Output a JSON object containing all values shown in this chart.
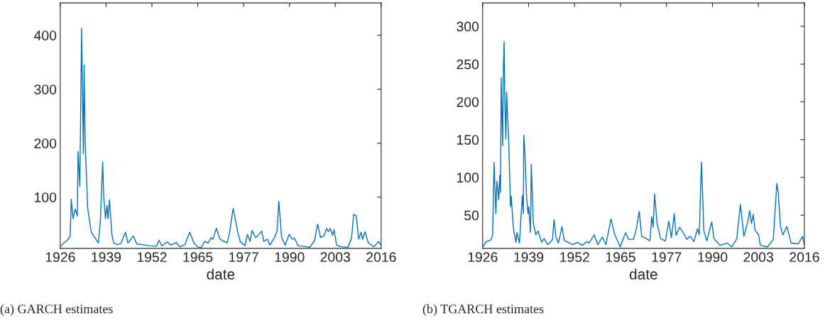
{
  "chart_data": [
    {
      "type": "line",
      "xlabel": "date",
      "annotations": [
        "(a) GARCH estimates"
      ],
      "grid": false,
      "xlim": [
        1926,
        2016
      ],
      "ylim": [
        5,
        460
      ],
      "yticks": [
        100,
        200,
        300,
        400
      ],
      "xticks": [
        {
          "value": 1926,
          "label": "1926"
        },
        {
          "value": 1938.86,
          "label": "1939"
        },
        {
          "value": 1951.71,
          "label": "1952"
        },
        {
          "value": 1964.57,
          "label": "1965"
        },
        {
          "value": 1977.43,
          "label": "1977"
        },
        {
          "value": 1990.29,
          "label": "1990"
        },
        {
          "value": 2003.14,
          "label": "2003"
        },
        {
          "value": 2016,
          "label": "2016"
        }
      ],
      "series": [
        {
          "color": "#0072bd",
          "x": [
            1926,
            1927,
            1928,
            1928.8,
            1929.1,
            1929.6,
            1930.2,
            1930.8,
            1931.0,
            1931.5,
            1932.0,
            1932.5,
            1932.7,
            1933.0,
            1933.7,
            1934.7,
            1936.7,
            1937.3,
            1937.9,
            1938.2,
            1938.7,
            1939.1,
            1939.4,
            1939.8,
            1940.5,
            1941,
            1942,
            1943,
            1944.3,
            1945,
            1946.5,
            1947.5,
            1949,
            1951,
            1953,
            1953.7,
            1954.5,
            1956,
            1957,
            1958.5,
            1959.5,
            1961,
            1962.3,
            1963.5,
            1964.5,
            1965.5,
            1966.5,
            1967.5,
            1968.3,
            1968.8,
            1969.8,
            1970.8,
            1972.8,
            1973.5,
            1974.5,
            1975.2,
            1975.8,
            1976.5,
            1977.8,
            1978.5,
            1979.2,
            1979.8,
            1980.8,
            1981.5,
            1982.5,
            1983.1,
            1984.1,
            1984.8,
            1986.1,
            1986.8,
            1987.3,
            1988.1,
            1989.1,
            1990.2,
            1991.1,
            1991.7,
            1992.7,
            1994.0,
            1996.0,
            1997.3,
            1998.2,
            1999.0,
            2000.0,
            2000.7,
            2001.2,
            2001.7,
            2002.4,
            2002.8,
            2003.5,
            2004.7,
            2006.7,
            2007.7,
            2008.3,
            2009.0,
            2009.7,
            2010.4,
            2010.8,
            2011.5,
            2012.4,
            2014.0,
            2015.3,
            2016.0
          ],
          "values": [
            8,
            15,
            20,
            28,
            96,
            60,
            78,
            65,
            185,
            120,
            413,
            180,
            345,
            200,
            80,
            35,
            15,
            60,
            165,
            100,
            60,
            85,
            60,
            95,
            30,
            15,
            12,
            14,
            35,
            15,
            28,
            13,
            12,
            10,
            9,
            20,
            10,
            17,
            11,
            16,
            8,
            12,
            35,
            15,
            8,
            6,
            18,
            15,
            25,
            22,
            42,
            22,
            15,
            35,
            79,
            55,
            35,
            17,
            10,
            31,
            18,
            38,
            25,
            29,
            37,
            18,
            22,
            11,
            25,
            37,
            92,
            25,
            11,
            31,
            22,
            24,
            10,
            9,
            7,
            19,
            50,
            25,
            29,
            42,
            36,
            42,
            29,
            40,
            11,
            8,
            7,
            24,
            68,
            66,
            22,
            35,
            22,
            36,
            15,
            8,
            18,
            10
          ]
        }
      ]
    },
    {
      "type": "line",
      "xlabel": "date",
      "annotations": [
        "(b) TGARCH estimates"
      ],
      "grid": false,
      "xlim": [
        1926,
        2016
      ],
      "ylim": [
        6,
        331
      ],
      "yticks": [
        50,
        100,
        150,
        200,
        250,
        300
      ],
      "xticks": [
        {
          "value": 1926,
          "label": "1926"
        },
        {
          "value": 1938.86,
          "label": "1939"
        },
        {
          "value": 1951.71,
          "label": "1952"
        },
        {
          "value": 1964.57,
          "label": "1965"
        },
        {
          "value": 1977.43,
          "label": "1977"
        },
        {
          "value": 1990.29,
          "label": "1990"
        },
        {
          "value": 2003.14,
          "label": "2003"
        },
        {
          "value": 2016,
          "label": "2016"
        }
      ],
      "series": [
        {
          "color": "#0072bd",
          "x": [
            1926.0,
            1927.0,
            1928.3,
            1928.8,
            1929.2,
            1929.7,
            1930.0,
            1930.5,
            1930.8,
            1931.0,
            1931.2,
            1931.6,
            1931.8,
            1932.0,
            1932.2,
            1932.5,
            1932.7,
            1933.3,
            1933.8,
            1934.0,
            1934.6,
            1935.3,
            1935.6,
            1936.3,
            1937.1,
            1937.4,
            1937.5,
            1937.8,
            1938.3,
            1938.7,
            1938.9,
            1939.4,
            1939.6,
            1940.2,
            1940.9,
            1941.5,
            1942.5,
            1943.2,
            1944.2,
            1945.5,
            1946.0,
            1946.5,
            1947.2,
            1948.2,
            1948.8,
            1949.8,
            1951.2,
            1952.5,
            1953.8,
            1955.2,
            1955.8,
            1957.2,
            1958.2,
            1959.5,
            1960.5,
            1961.9,
            1962.9,
            1964.5,
            1966.0,
            1966.8,
            1968.2,
            1969.0,
            1969.8,
            1970.5,
            1971.8,
            1972.8,
            1973.3,
            1973.7,
            1974.1,
            1974.8,
            1975.8,
            1977.1,
            1978.1,
            1978.8,
            1979.6,
            1980.1,
            1981.1,
            1982.1,
            1983.1,
            1984.1,
            1985.1,
            1986.1,
            1986.6,
            1987.2,
            1987.9,
            1988.7,
            1990.1,
            1990.7,
            1992.4,
            1994.4,
            1995.7,
            1997.1,
            1998.1,
            1999.1,
            2000.2,
            2000.7,
            2001.2,
            2001.7,
            2002.2,
            2003.2,
            2003.7,
            2005.7,
            2007.3,
            2008.3,
            2008.7,
            2009.3,
            2010.0,
            2011.1,
            2012.3,
            2014.3,
            2015.5,
            2016.0
          ],
          "values": [
            8,
            15,
            17,
            24,
            120,
            52,
            95,
            70,
            103,
            80,
            232,
            142,
            241,
            280,
            204,
            151,
            213,
            148,
            61,
            75,
            33,
            14,
            27,
            13,
            76,
            52,
            156,
            136,
            73,
            52,
            61,
            27,
            117,
            39,
            24,
            29,
            14,
            19,
            11,
            17,
            44,
            21,
            13,
            35,
            17,
            14,
            11,
            14,
            10,
            15,
            13,
            24,
            11,
            21,
            11,
            45,
            25,
            8,
            27,
            18,
            18,
            32,
            55,
            22,
            19,
            16,
            48,
            34,
            78,
            39,
            19,
            16,
            42,
            20,
            52,
            23,
            34,
            27,
            18,
            22,
            15,
            32,
            24,
            120,
            29,
            16,
            41,
            19,
            10,
            13,
            8,
            19,
            64,
            22,
            42,
            56,
            39,
            51,
            30,
            24,
            10,
            8,
            18,
            92,
            80,
            35,
            24,
            35,
            13,
            12,
            22,
            10
          ]
        }
      ]
    }
  ]
}
